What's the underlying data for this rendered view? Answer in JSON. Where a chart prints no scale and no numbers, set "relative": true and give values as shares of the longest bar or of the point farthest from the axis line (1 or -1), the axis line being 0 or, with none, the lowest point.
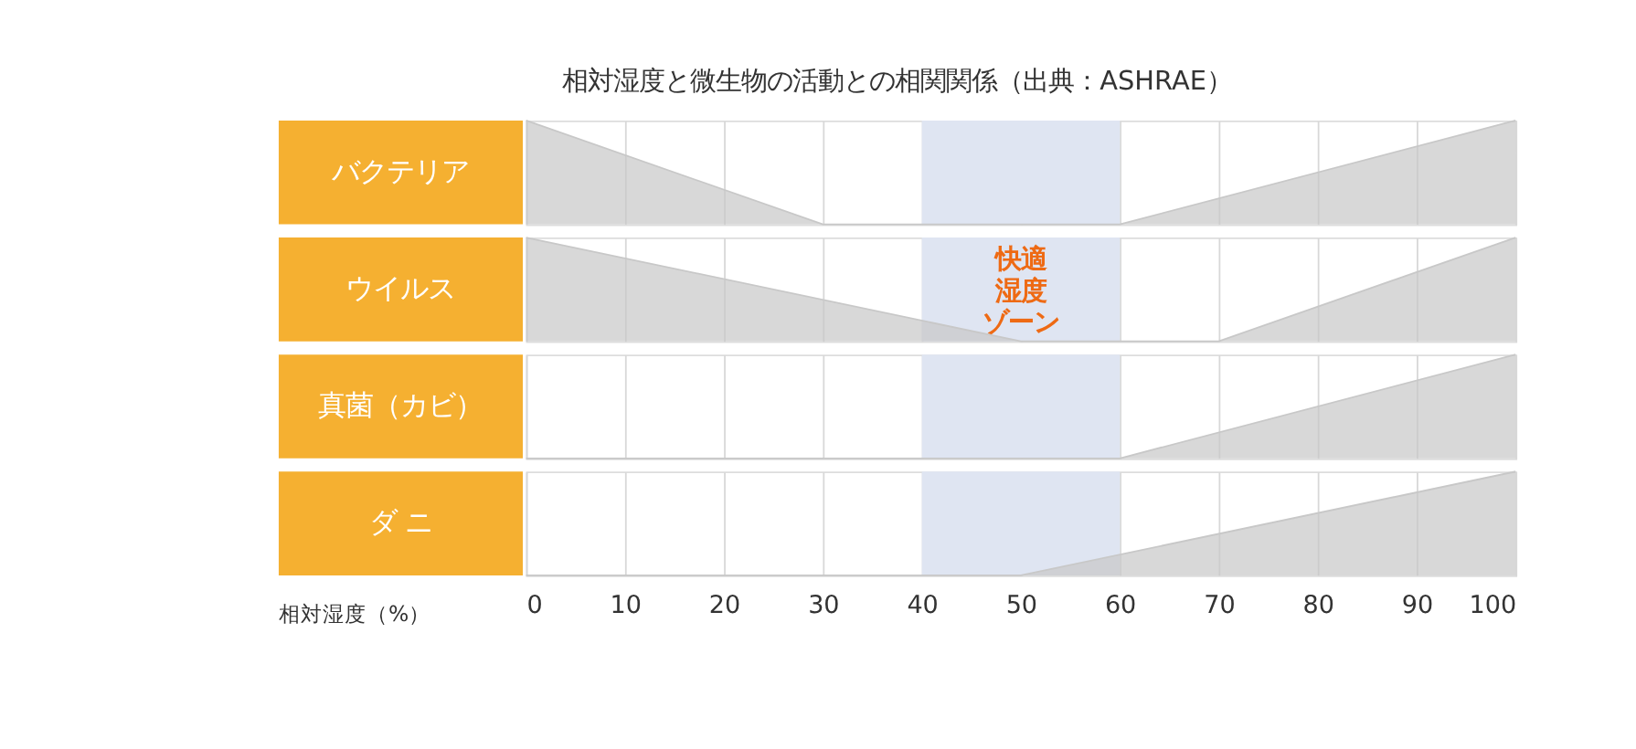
{
  "chart_data": [
    {
      "type": "area",
      "title": "相対湿度と微生物の活動との相関関係（出典：ASHRAE）",
      "ylabel": "バクテリア",
      "relative": true,
      "xlim": [
        0,
        100
      ],
      "xticks": [
        0,
        10,
        20,
        30,
        40,
        50,
        60,
        70,
        80,
        90,
        100
      ],
      "grid": "x",
      "tick_labels": false,
      "bands": [
        {
          "axis": "x",
          "from": 40,
          "to": 60,
          "color": "#dfe5f2"
        }
      ],
      "series": [
        {
          "color": "#c8c8c8",
          "x": [
            0,
            30,
            60,
            100
          ],
          "values": [
            1,
            0,
            0,
            1
          ]
        }
      ]
    },
    {
      "type": "area",
      "ylabel": "ウイルス",
      "relative": true,
      "xlim": [
        0,
        100
      ],
      "xticks": [
        0,
        10,
        20,
        30,
        40,
        50,
        60,
        70,
        80,
        90,
        100
      ],
      "grid": "x",
      "tick_labels": false,
      "bands": [
        {
          "axis": "x",
          "from": 40,
          "to": 60,
          "color": "#dfe5f2"
        }
      ],
      "annotations": [
        "快適",
        "湿度",
        "ゾーン"
      ],
      "series": [
        {
          "color": "#c8c8c8",
          "x": [
            0,
            50,
            70,
            100
          ],
          "values": [
            1,
            0,
            0,
            1
          ]
        }
      ]
    },
    {
      "type": "area",
      "ylabel": "真菌（カビ）",
      "relative": true,
      "xlim": [
        0,
        100
      ],
      "xticks": [
        0,
        10,
        20,
        30,
        40,
        50,
        60,
        70,
        80,
        90,
        100
      ],
      "grid": "x",
      "tick_labels": false,
      "bands": [
        {
          "axis": "x",
          "from": 40,
          "to": 60,
          "color": "#dfe5f2"
        }
      ],
      "series": [
        {
          "color": "#c8c8c8",
          "x": [
            0,
            60,
            100
          ],
          "values": [
            0,
            0,
            1
          ]
        }
      ]
    },
    {
      "type": "area",
      "ylabel": "ダ ニ",
      "xlabel": "相対湿度（%）",
      "relative": true,
      "xlim": [
        0,
        100
      ],
      "xticks": [
        0,
        10,
        20,
        30,
        40,
        50,
        60,
        70,
        80,
        90,
        100
      ],
      "grid": "x",
      "tick_labels": "x",
      "bands": [
        {
          "axis": "x",
          "from": 40,
          "to": 60,
          "color": "#dfe5f2"
        }
      ],
      "series": [
        {
          "color": "#c8c8c8",
          "x": [
            0,
            50,
            100
          ],
          "values": [
            0,
            0,
            1
          ]
        }
      ]
    }
  ]
}
